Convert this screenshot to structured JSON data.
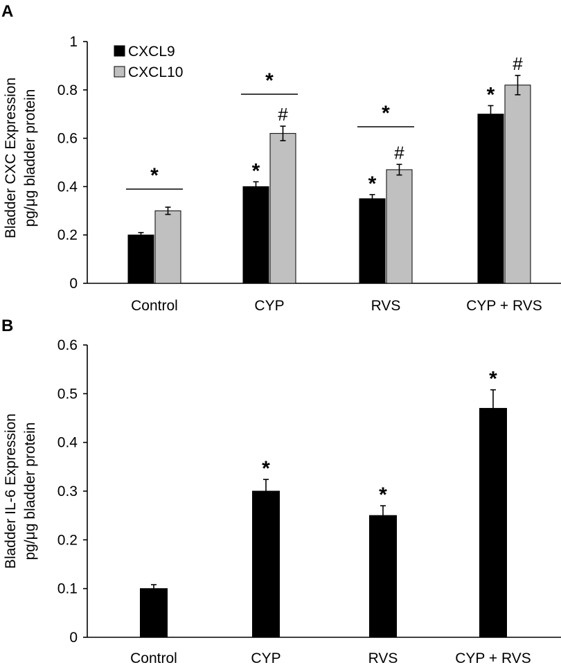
{
  "chart_data": [
    {
      "panel": "A",
      "type": "bar",
      "categories": [
        "Control",
        "CYP",
        "RVS",
        "CYP + RVS"
      ],
      "ylabel_lines": [
        "Bladder CXC Expression",
        "pg/μg bladder protein"
      ],
      "ylim": [
        0,
        1
      ],
      "yticks": [
        0,
        0.2,
        0.4,
        0.6,
        0.8,
        1
      ],
      "ytick_labels": [
        "0",
        "0.2",
        "0.4",
        "0.6",
        "0.8",
        "1"
      ],
      "series": [
        {
          "name": "CXCL9",
          "color": "#000000",
          "values": [
            0.2,
            0.4,
            0.35,
            0.7
          ],
          "errors": [
            0.01,
            0.02,
            0.017,
            0.035
          ],
          "marks": [
            "",
            "*",
            "*",
            "*"
          ]
        },
        {
          "name": "CXCL10",
          "color": "#c0c0c0",
          "values": [
            0.3,
            0.62,
            0.47,
            0.82
          ],
          "errors": [
            0.015,
            0.03,
            0.022,
            0.04
          ],
          "marks": [
            "",
            "#",
            "#",
            "#"
          ]
        }
      ],
      "brackets": [
        {
          "category": 0,
          "label": "*"
        },
        {
          "category": 1,
          "label": "*"
        },
        {
          "category": 2,
          "label": "*"
        }
      ]
    },
    {
      "panel": "B",
      "type": "bar",
      "categories": [
        "Control",
        "CYP",
        "RVS",
        "CYP + RVS"
      ],
      "ylabel_lines": [
        "Bladder IL-6 Expression",
        "pg/μg bladder protein"
      ],
      "ylim": [
        0,
        0.6
      ],
      "yticks": [
        0,
        0.1,
        0.2,
        0.3,
        0.4,
        0.5,
        0.6
      ],
      "ytick_labels": [
        "0",
        "0.1",
        "0.2",
        "0.3",
        "0.4",
        "0.5",
        "0.6"
      ],
      "series": [
        {
          "name": "IL-6",
          "color": "#000000",
          "values": [
            0.1,
            0.3,
            0.25,
            0.47
          ],
          "errors": [
            0.008,
            0.024,
            0.02,
            0.038
          ],
          "marks": [
            "",
            "*",
            "*",
            "*"
          ]
        }
      ],
      "brackets": []
    }
  ]
}
